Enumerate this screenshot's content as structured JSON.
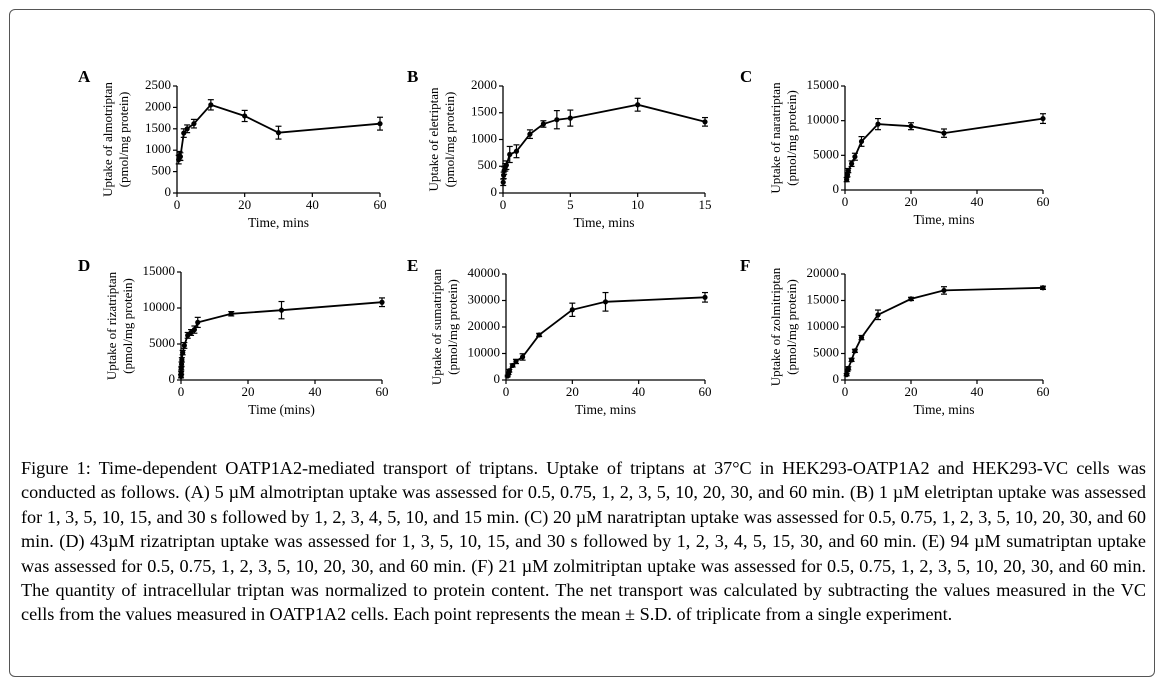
{
  "figure": {
    "caption_title": "Figure 1: Time-dependent OATP1A2-mediated transport of triptans",
    "caption_text": ". Uptake of triptans at 37°C in HEK293-OATP1A2 and HEK293-VC cells was conducted as follows. (A) 5 µM almotriptan uptake was assessed for 0.5, 0.75, 1, 2, 3, 5, 10, 20, 30, and 60 min. (B) 1 µM eletriptan uptake was assessed for 1, 3, 5, 10, 15, and 30 s followed by 1, 2, 3, 4, 5, 10, and 15 min. (C) 20 µM naratriptan uptake was assessed for 0.5, 0.75, 1, 2, 3, 5, 10, 20, 30, and 60 min. (D) 43µM rizatriptan uptake was assessed for 1, 3, 5, 10, 15, and 30 s followed by 1, 2, 3, 4, 5, 15, 30, and 60 min. (E) 94 µM sumatriptan uptake was assessed for 0.5, 0.75, 1, 2, 3, 5, 10, 20, 30, and 60 min. (F) 21 µM zolmitriptan uptake was assessed for 0.5, 0.75, 1, 2, 3, 5, 10, 20, 30, and 60 min. The quantity of intracellular triptan was normalized to protein content. The net transport was calculated by subtracting the values measured in the VC cells from the values measured in OATP1A2 cells. Each point represents the mean ± S.D. of triplicate from a single experiment."
  },
  "chart_data": [
    {
      "panel": "A",
      "type": "line",
      "xlabel": "Time, mins",
      "ylabel": "Uptake of almotriptan",
      "ylabel2": "(pmol/mg protein)",
      "xlim": [
        0,
        60
      ],
      "ylim": [
        0,
        2500
      ],
      "xticks": [
        0,
        20,
        40,
        60
      ],
      "yticks": [
        0,
        500,
        1000,
        1500,
        2000,
        2500
      ],
      "x": [
        0.5,
        0.75,
        1,
        2,
        3,
        5,
        10,
        20,
        30,
        60
      ],
      "y": [
        780,
        870,
        850,
        1400,
        1500,
        1620,
        2060,
        1800,
        1410,
        1620
      ],
      "err": [
        100,
        100,
        90,
        100,
        90,
        100,
        120,
        130,
        150,
        150
      ]
    },
    {
      "panel": "B",
      "type": "line",
      "xlabel": "Time, mins",
      "ylabel": "Uptake of eletriptan",
      "ylabel2": "(pmol/mg protein)",
      "xlim": [
        0,
        15
      ],
      "ylim": [
        0,
        2000
      ],
      "xticks": [
        0,
        5,
        10,
        15
      ],
      "yticks": [
        0,
        500,
        1000,
        1500,
        2000
      ],
      "x": [
        0.0167,
        0.05,
        0.0833,
        0.1667,
        0.25,
        0.5,
        1,
        2,
        3,
        4,
        5,
        10,
        15
      ],
      "y": [
        200,
        330,
        420,
        480,
        520,
        720,
        780,
        1100,
        1290,
        1370,
        1400,
        1650,
        1330
      ],
      "err": [
        60,
        60,
        70,
        70,
        80,
        150,
        120,
        80,
        60,
        170,
        150,
        120,
        80
      ]
    },
    {
      "panel": "C",
      "type": "line",
      "xlabel": "Time, mins",
      "ylabel": "Uptake of naratriptan",
      "ylabel2": "(pmol/mg protein)",
      "xlim": [
        0,
        60
      ],
      "ylim": [
        0,
        15000
      ],
      "xticks": [
        0,
        20,
        40,
        60
      ],
      "yticks": [
        0,
        5000,
        10000,
        15000
      ],
      "x": [
        0.5,
        0.75,
        1,
        2,
        3,
        5,
        10,
        20,
        30,
        60
      ],
      "y": [
        1500,
        2200,
        2800,
        3800,
        4800,
        7000,
        9500,
        9200,
        8200,
        10300
      ],
      "err": [
        300,
        300,
        300,
        400,
        500,
        700,
        800,
        500,
        600,
        700
      ]
    },
    {
      "panel": "D",
      "type": "line",
      "xlabel": "Time (mins)",
      "ylabel": "Uptake of rizatriptan",
      "ylabel2": "(pmol/mg protein)",
      "xlim": [
        0,
        60
      ],
      "ylim": [
        0,
        15000
      ],
      "xticks": [
        0,
        20,
        40,
        60
      ],
      "yticks": [
        0,
        5000,
        10000,
        15000
      ],
      "x": [
        0.0167,
        0.05,
        0.0833,
        0.1667,
        0.25,
        0.5,
        1,
        2,
        3,
        4,
        5,
        15,
        30,
        60
      ],
      "y": [
        500,
        1000,
        1600,
        2200,
        2800,
        3800,
        4800,
        6200,
        6600,
        7000,
        8000,
        9200,
        9700,
        10800
      ],
      "err": [
        200,
        200,
        200,
        300,
        300,
        300,
        400,
        400,
        400,
        500,
        700,
        300,
        1200,
        600
      ]
    },
    {
      "panel": "E",
      "type": "line",
      "xlabel": "Time, mins",
      "ylabel": "Uptake of sumatriptan",
      "ylabel2": "(pmol/mg protein)",
      "xlim": [
        0,
        60
      ],
      "ylim": [
        0,
        40000
      ],
      "xticks": [
        0,
        20,
        40,
        60
      ],
      "yticks": [
        0,
        10000,
        20000,
        30000,
        40000
      ],
      "x": [
        0.5,
        0.75,
        1,
        2,
        3,
        5,
        10,
        20,
        30,
        60
      ],
      "y": [
        1500,
        2500,
        3500,
        5500,
        7000,
        8700,
        17000,
        26500,
        29500,
        31200
      ],
      "err": [
        300,
        400,
        500,
        600,
        800,
        1200,
        600,
        2500,
        3500,
        1800
      ]
    },
    {
      "panel": "F",
      "type": "line",
      "xlabel": "Time, mins",
      "ylabel": "Uptake of zolmitriptan",
      "ylabel2": "(pmol/mg protein)",
      "xlim": [
        0,
        60
      ],
      "ylim": [
        0,
        20000
      ],
      "xticks": [
        0,
        20,
        40,
        60
      ],
      "yticks": [
        0,
        5000,
        10000,
        15000,
        20000
      ],
      "x": [
        0.5,
        0.75,
        1,
        2,
        3,
        5,
        10,
        20,
        30,
        60
      ],
      "y": [
        1000,
        1800,
        2200,
        3800,
        5500,
        8000,
        12300,
        15300,
        16900,
        17400
      ],
      "err": [
        200,
        200,
        300,
        300,
        300,
        400,
        900,
        300,
        700,
        300
      ]
    }
  ]
}
